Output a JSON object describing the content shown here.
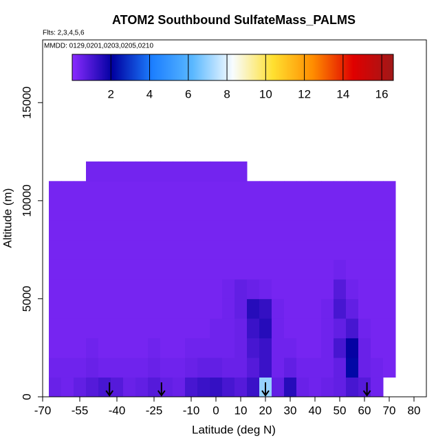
{
  "chart_data": {
    "type": "heatmap",
    "title": "ATOM2 Southbound SulfateMass_PALMS",
    "subtitle": "Flts: 2,3,4,5,6",
    "note": "MMDD: 0129,0201,0203,0205,0210",
    "xlabel": "Latitude (deg N)",
    "ylabel": "Altitude (m)",
    "xlim": [
      -70,
      85
    ],
    "ylim": [
      0,
      18200
    ],
    "xticks": [
      -70,
      -55,
      -40,
      -25,
      -10,
      0,
      10,
      20,
      30,
      40,
      50,
      60,
      70,
      80
    ],
    "yticks": [
      0,
      5000,
      10000,
      15000
    ],
    "clim": [
      0,
      16.6
    ],
    "cticks": [
      2,
      4,
      6,
      8,
      10,
      12,
      14,
      16
    ],
    "colors": [
      "#8a2bff",
      "#0000a0",
      "#1c7fff",
      "#5ab8ff",
      "#f8fcff",
      "#ffe030",
      "#ff8c00",
      "#e00000",
      "#a01818"
    ],
    "arrows": [
      -43,
      -22,
      20,
      61
    ],
    "x": [
      -65,
      -60,
      -55,
      -50,
      -45,
      -40,
      -35,
      -30,
      -25,
      -20,
      -15,
      -10,
      -5,
      0,
      5,
      10,
      15,
      20,
      25,
      30,
      35,
      40,
      45,
      50,
      55,
      60,
      65,
      70
    ],
    "y": [
      500,
      1500,
      2500,
      3500,
      4500,
      5500,
      6500,
      7500,
      8500,
      9500,
      10500,
      11500
    ],
    "z": [
      [
        0.5,
        0.4,
        0.6,
        0.8,
        1,
        0.8,
        0.5,
        0.6,
        0.8,
        0.6,
        0.5,
        1,
        1.2,
        1.3,
        1,
        0.8,
        1.2,
        7,
        0.6,
        1.5,
        0.5,
        0.4,
        0.5,
        0.6,
        1,
        0.8,
        0.4,
        null
      ],
      [
        0.4,
        0.4,
        0.4,
        0.5,
        0.4,
        0.4,
        0.4,
        0.4,
        0.5,
        0.4,
        0.4,
        0.5,
        0.6,
        0.6,
        0.5,
        0.5,
        0.8,
        1.2,
        0.4,
        0.6,
        0.4,
        0.4,
        0.4,
        0.6,
        2.2,
        0.5,
        0.4,
        0.3
      ],
      [
        0.3,
        0.3,
        0.3,
        0.4,
        0.3,
        0.3,
        0.3,
        0.3,
        0.4,
        0.3,
        0.3,
        0.4,
        0.4,
        0.4,
        0.4,
        0.5,
        1,
        1.2,
        0.4,
        0.4,
        0.3,
        0.3,
        0.4,
        1,
        2,
        0.5,
        0.3,
        0.3
      ],
      [
        0.3,
        0.3,
        0.3,
        0.3,
        0.3,
        0.3,
        0.3,
        0.3,
        0.3,
        0.3,
        0.3,
        0.3,
        0.3,
        0.4,
        0.4,
        0.5,
        1.2,
        1.5,
        0.4,
        0.3,
        0.3,
        0.3,
        0.4,
        0.6,
        1,
        0.4,
        0.3,
        0.3
      ],
      [
        0.3,
        0.3,
        0.3,
        0.3,
        0.3,
        0.3,
        0.3,
        0.3,
        0.3,
        0.3,
        0.3,
        0.3,
        0.3,
        0.3,
        0.4,
        0.6,
        1.5,
        1.3,
        0.4,
        0.3,
        0.3,
        0.3,
        0.4,
        1,
        0.6,
        0.3,
        0.3,
        0.3
      ],
      [
        0.3,
        0.3,
        0.3,
        0.3,
        0.3,
        0.3,
        0.3,
        0.3,
        0.3,
        0.3,
        0.3,
        0.3,
        0.3,
        0.3,
        0.4,
        0.6,
        0.5,
        0.4,
        0.3,
        0.3,
        0.3,
        0.3,
        0.3,
        0.8,
        0.4,
        0.3,
        0.3,
        0.3
      ],
      [
        0.3,
        0.3,
        0.3,
        0.3,
        0.3,
        0.3,
        0.3,
        0.3,
        0.3,
        0.3,
        0.3,
        0.3,
        0.3,
        0.3,
        0.3,
        0.3,
        0.3,
        0.3,
        0.3,
        0.3,
        0.3,
        0.3,
        0.3,
        0.4,
        0.3,
        0.3,
        0.3,
        0.3
      ],
      [
        0.3,
        0.3,
        0.3,
        0.3,
        0.3,
        0.3,
        0.3,
        0.3,
        0.3,
        0.3,
        0.3,
        0.3,
        0.3,
        0.3,
        0.3,
        0.3,
        0.3,
        0.3,
        0.3,
        0.3,
        0.3,
        0.3,
        0.3,
        0.3,
        0.3,
        0.3,
        0.3,
        0.3
      ],
      [
        0.3,
        0.3,
        0.3,
        0.3,
        0.3,
        0.3,
        0.3,
        0.3,
        0.3,
        0.3,
        0.3,
        0.3,
        0.3,
        0.3,
        0.3,
        0.3,
        0.3,
        0.3,
        0.3,
        0.3,
        0.3,
        0.3,
        0.3,
        0.3,
        0.3,
        0.3,
        0.3,
        0.3
      ],
      [
        0.3,
        0.3,
        0.3,
        0.3,
        0.3,
        0.3,
        0.3,
        0.3,
        0.3,
        0.3,
        0.3,
        0.3,
        0.3,
        0.3,
        0.3,
        0.3,
        0.3,
        0.3,
        0.3,
        0.3,
        0.3,
        0.3,
        0.3,
        0.3,
        0.3,
        0.3,
        0.3,
        0.3
      ],
      [
        0.3,
        0.3,
        0.3,
        0.3,
        0.3,
        0.3,
        0.3,
        0.3,
        0.3,
        0.3,
        0.3,
        0.3,
        0.3,
        0.3,
        0.3,
        0.3,
        0.3,
        0.3,
        0.3,
        0.3,
        0.3,
        0.3,
        0.3,
        0.3,
        0.3,
        0.3,
        0.3,
        0.3
      ],
      [
        null,
        null,
        null,
        0.35,
        0.35,
        0.35,
        0.35,
        0.35,
        0.35,
        0.35,
        0.35,
        0.35,
        0.35,
        0.35,
        0.35,
        0.35,
        null,
        null,
        null,
        null,
        null,
        null,
        null,
        null,
        null,
        null,
        null,
        null
      ]
    ]
  }
}
